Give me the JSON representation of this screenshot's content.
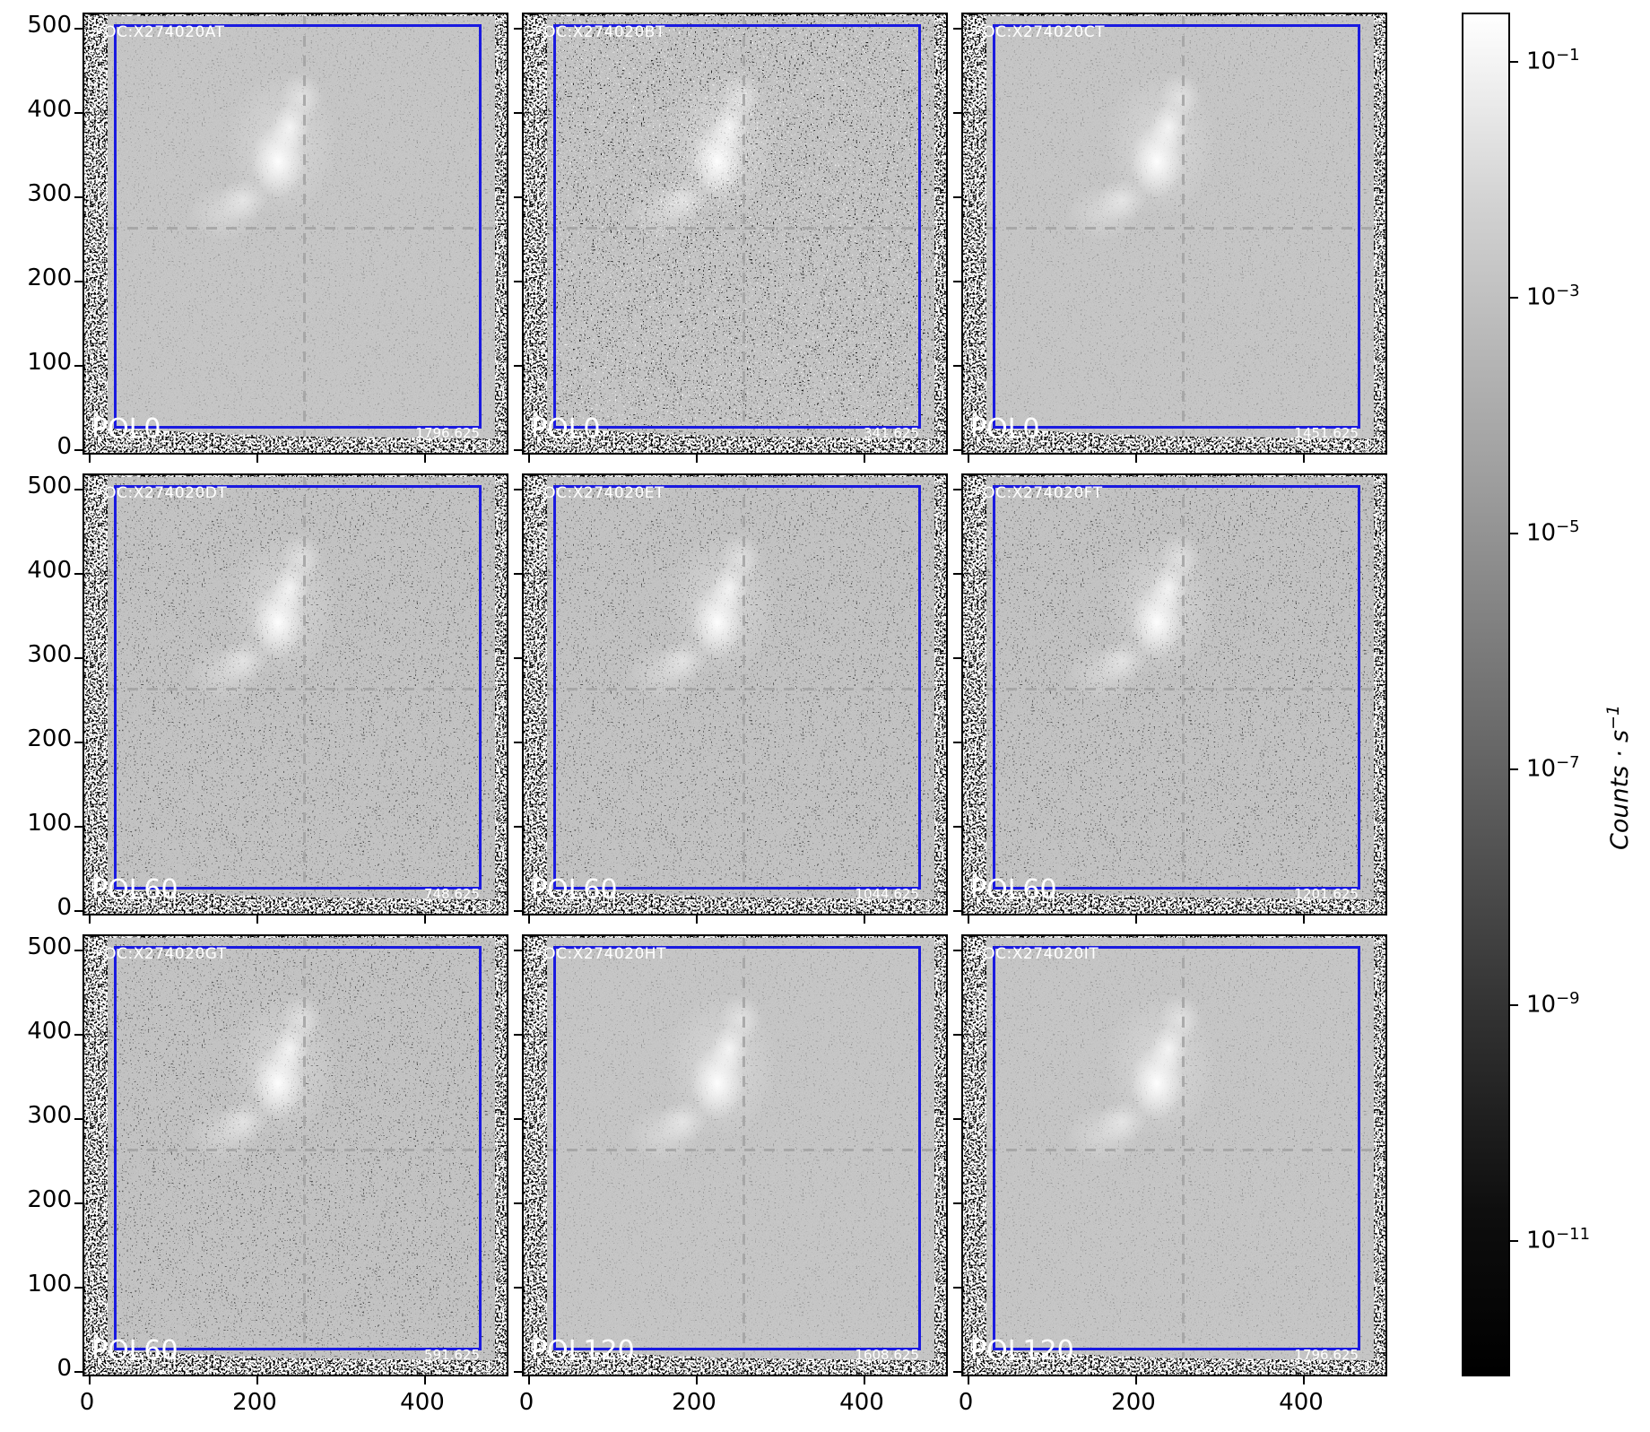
{
  "figure": {
    "description": "3x3 grid of grayscale FOC polarimetry sky images with shared axes, blue ROI boxes, dashed crosshairs and a logarithmic grayscale colorbar"
  },
  "panels": [
    {
      "row": 1,
      "col": 1,
      "instrument_label": "FOC:X274020AT",
      "polarizer_label": "POL0",
      "value_label": "1796.625",
      "noise": "fine"
    },
    {
      "row": 1,
      "col": 2,
      "instrument_label": "FOC:X274020BT",
      "polarizer_label": "POL0",
      "value_label": "341.625",
      "noise": "heavy"
    },
    {
      "row": 1,
      "col": 3,
      "instrument_label": "FOC:X274020CT",
      "polarizer_label": "POL0",
      "value_label": "1451.625",
      "noise": "fine"
    },
    {
      "row": 2,
      "col": 1,
      "instrument_label": "FOC:X274020DT",
      "polarizer_label": "POL60",
      "value_label": "748.625",
      "noise": "medium"
    },
    {
      "row": 2,
      "col": 2,
      "instrument_label": "FOC:X274020ET",
      "polarizer_label": "POL60",
      "value_label": "1044.625",
      "noise": "medium"
    },
    {
      "row": 2,
      "col": 3,
      "instrument_label": "FOC:X274020FT",
      "polarizer_label": "POL60",
      "value_label": "1201.625",
      "noise": "medium"
    },
    {
      "row": 3,
      "col": 1,
      "instrument_label": "FOC:X274020GT",
      "polarizer_label": "POL60",
      "value_label": "591.625",
      "noise": "medium"
    },
    {
      "row": 3,
      "col": 2,
      "instrument_label": "FOC:X274020HT",
      "polarizer_label": "POL120",
      "value_label": "1608.625",
      "noise": "fine"
    },
    {
      "row": 3,
      "col": 3,
      "instrument_label": "FOC:X274020IT",
      "polarizer_label": "POL120",
      "value_label": "1796.625",
      "noise": "fine"
    }
  ],
  "axes": {
    "y_tick_labels": [
      "500",
      "400",
      "300",
      "200",
      "100",
      "0"
    ],
    "x_tick_labels": [
      "0",
      "200",
      "400"
    ]
  },
  "colorbar": {
    "scale": "log",
    "colormap": "gray (white = high)",
    "tick_labels": [
      {
        "base": "10",
        "exp": "−1"
      },
      {
        "base": "10",
        "exp": "−3"
      },
      {
        "base": "10",
        "exp": "−5"
      },
      {
        "base": "10",
        "exp": "−7"
      },
      {
        "base": "10",
        "exp": "−9"
      },
      {
        "base": "10",
        "exp": "−11"
      }
    ],
    "label_text": "Counts · s",
    "label_sup": "−1"
  },
  "colors": {
    "roi_box": "#1a1ae0",
    "crosshair": "#a2a2a2",
    "image_background": "#c9c9c9",
    "panel_label_text": "#ffffff"
  },
  "chart_data": {
    "type": "heatmap",
    "layout": "3x3 grid of grayscale astronomical images, shared x/y axes, colorbar at right",
    "x_ticks": [
      0,
      200,
      400
    ],
    "y_ticks": [
      500,
      400,
      300,
      200,
      100,
      0
    ],
    "x_range": [
      0,
      512
    ],
    "y_range": [
      0,
      512
    ],
    "panels": [
      {
        "row": 1,
        "col": 1,
        "id": "FOC:X274020AT",
        "polarizer": "POL0",
        "value": 1796.625
      },
      {
        "row": 1,
        "col": 2,
        "id": "FOC:X274020BT",
        "polarizer": "POL0",
        "value": 341.625
      },
      {
        "row": 1,
        "col": 3,
        "id": "FOC:X274020CT",
        "polarizer": "POL0",
        "value": 1451.625
      },
      {
        "row": 2,
        "col": 1,
        "id": "FOC:X274020DT",
        "polarizer": "POL60",
        "value": 748.625
      },
      {
        "row": 2,
        "col": 2,
        "id": "FOC:X274020ET",
        "polarizer": "POL60",
        "value": 1044.625
      },
      {
        "row": 2,
        "col": 3,
        "id": "FOC:X274020FT",
        "polarizer": "POL60",
        "value": 1201.625
      },
      {
        "row": 3,
        "col": 1,
        "id": "FOC:X274020GT",
        "polarizer": "POL60",
        "value": 591.625
      },
      {
        "row": 3,
        "col": 2,
        "id": "FOC:X274020HT",
        "polarizer": "POL120",
        "value": 1608.625
      },
      {
        "row": 3,
        "col": 3,
        "id": "FOC:X274020IT",
        "polarizer": "POL120",
        "value": 1796.625
      }
    ],
    "colorbar": {
      "label": "Counts · s⁻¹",
      "scale": "log",
      "ticks": [
        "10^-1",
        "10^-3",
        "10^-5",
        "10^-7",
        "10^-9",
        "10^-11"
      ]
    },
    "overlays": {
      "roi_box": "blue rectangle inset inside every panel",
      "crosshair": "gray dashed vertical and horizontal lines crossing near (256, 256)",
      "bright_feature": "diagonal chain of fuzzy bright blobs running from lower-left to upper-right of image center",
      "border_noise": "dense salt-and-pepper speckle strip around each image edge"
    }
  }
}
